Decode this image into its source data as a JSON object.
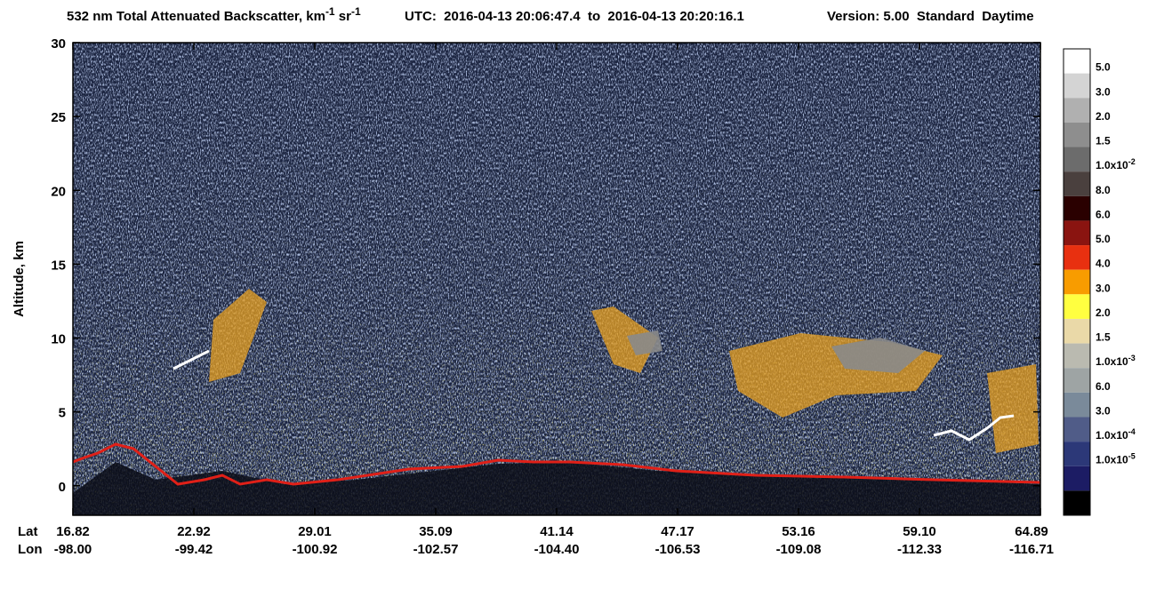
{
  "chart_data": {
    "type": "curtain",
    "title": [
      "532 nm Total Attenuated Backscatter, km",
      "-1",
      " sr",
      "-1"
    ],
    "utc": "UTC:  2016-04-13 20:06:47.4  to  2016-04-13 20:20:16.1",
    "version": "Version: 5.00  Standard  Daytime",
    "y_label": "Altitude, km",
    "ylim": [
      -2,
      30
    ],
    "yticks": [
      0,
      5,
      10,
      15,
      20,
      25,
      30
    ],
    "x_row_labels": [
      "Lat",
      "Lon"
    ],
    "lat": [
      "16.82",
      "22.92",
      "29.01",
      "35.09",
      "41.14",
      "47.17",
      "53.16",
      "59.10",
      "64.89"
    ],
    "lon": [
      "-98.00",
      "-99.42",
      "-100.92",
      "-102.57",
      "-104.40",
      "-106.53",
      "-109.08",
      "-112.33",
      "-116.71"
    ],
    "colorbar": {
      "colors": [
        "#ffffff",
        "#d4d4d4",
        "#b0b0b0",
        "#8e8e8e",
        "#6c6c6c",
        "#4a403e",
        "#2a0000",
        "#8a1410",
        "#e83010",
        "#f89c00",
        "#ffff40",
        "#ead9a8",
        "#babab0",
        "#9ea4a4",
        "#7a8a9a",
        "#505c88",
        "#2c3878",
        "#1c1c64",
        "#000000"
      ],
      "labels": [
        "5.0",
        "3.0",
        "2.0",
        "1.5",
        {
          "text": "1.0x10",
          "sup": "-2"
        },
        "8.0",
        "6.0",
        "5.0",
        "4.0",
        "3.0",
        "2.0",
        "1.5",
        {
          "text": "1.0x10",
          "sup": "-3"
        },
        "6.0",
        "3.0",
        {
          "text": "1.0x10",
          "sup": "-4"
        },
        {
          "text": "1.0x10",
          "sup": "-5"
        }
      ]
    }
  }
}
